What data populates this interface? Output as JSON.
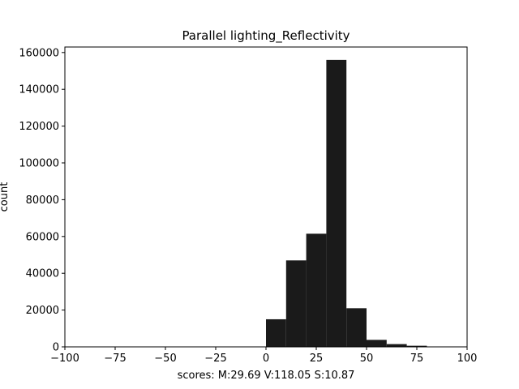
{
  "chart_data": {
    "type": "bar",
    "title": "Parallel lighting_Reflectivity",
    "xlabel": "scores: M:29.69 V:118.05 S:10.87",
    "ylabel": "count",
    "xlim": [
      -100,
      100
    ],
    "ylim": [
      0,
      163000
    ],
    "x_ticks": [
      -100,
      -75,
      -50,
      -25,
      0,
      25,
      50,
      75,
      100
    ],
    "x_tick_labels": [
      "−100",
      "−75",
      "−50",
      "−25",
      "0",
      "25",
      "50",
      "75",
      "100"
    ],
    "y_ticks": [
      0,
      20000,
      40000,
      60000,
      80000,
      100000,
      120000,
      140000,
      160000
    ],
    "y_tick_labels": [
      "0",
      "20000",
      "40000",
      "60000",
      "80000",
      "100000",
      "120000",
      "140000",
      "160000"
    ],
    "bin_width": 10,
    "bins": [
      {
        "x0": 0,
        "x1": 10,
        "count": 15000
      },
      {
        "x0": 10,
        "x1": 20,
        "count": 47000
      },
      {
        "x0": 20,
        "x1": 30,
        "count": 61500
      },
      {
        "x0": 30,
        "x1": 40,
        "count": 156000
      },
      {
        "x0": 40,
        "x1": 50,
        "count": 21000
      },
      {
        "x0": 50,
        "x1": 60,
        "count": 3800
      },
      {
        "x0": 60,
        "x1": 70,
        "count": 1500
      },
      {
        "x0": 70,
        "x1": 80,
        "count": 600
      }
    ],
    "bar_color": "#1a1a1a",
    "grid": false,
    "legend": "none"
  }
}
